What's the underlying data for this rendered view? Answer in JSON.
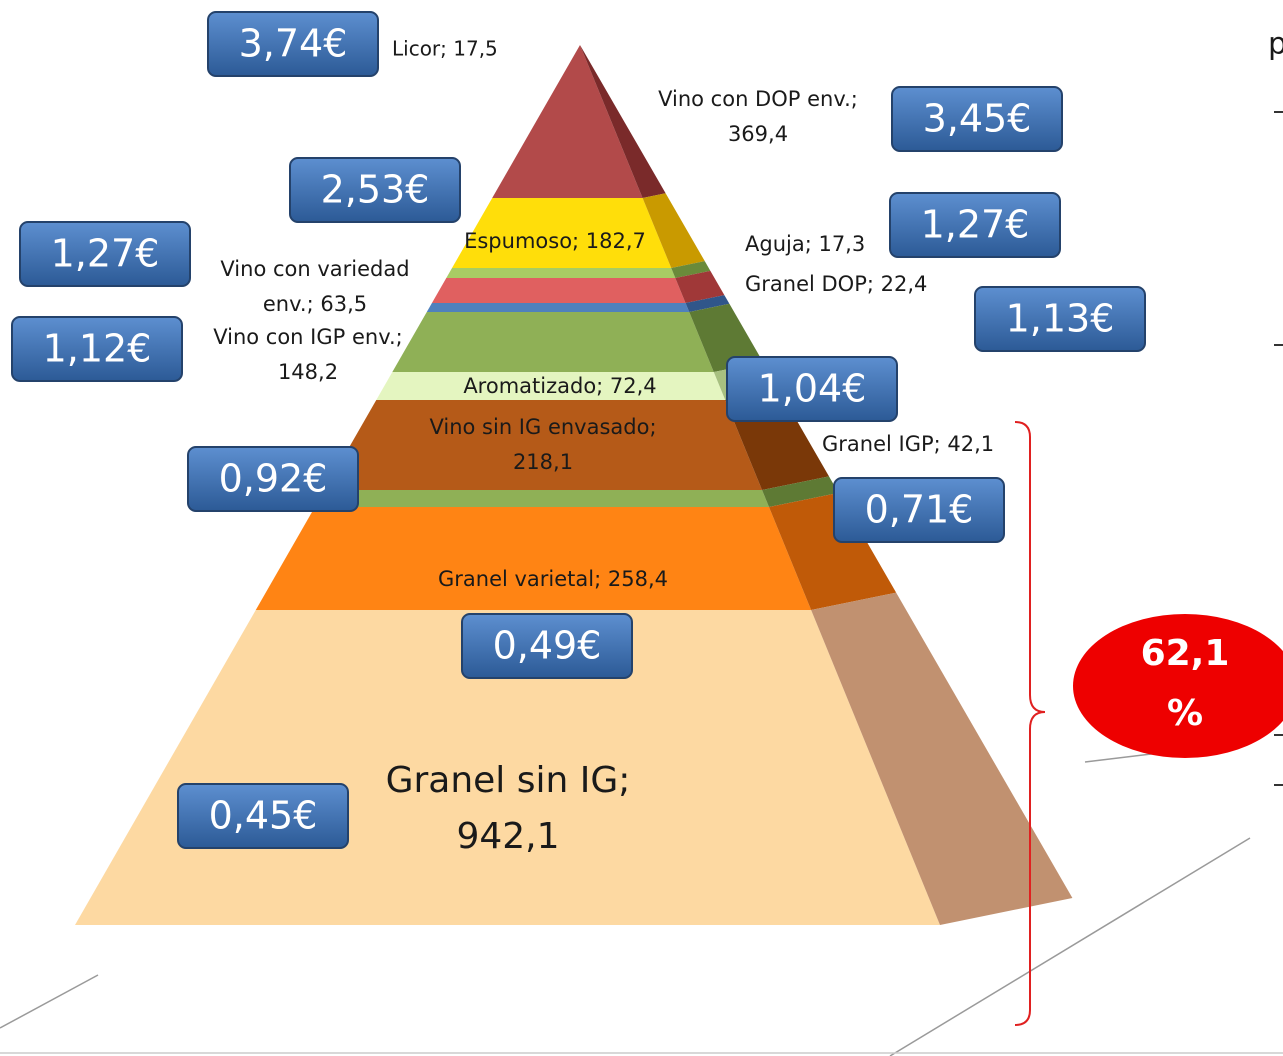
{
  "labels": [
    [
      "Licor; 17,5"
    ],
    [
      "Vino con DOP env.;",
      "369,4"
    ],
    [
      "Espumoso; 182,7"
    ],
    [
      "Aguja; 17,3"
    ],
    [
      "Granel DOP; 22,4"
    ],
    [
      "Vino con variedad",
      "env.; 63,5"
    ],
    [
      "Vino con IGP env.;",
      "148,2"
    ],
    [
      "Aromatizado; 72,4"
    ],
    [
      "Vino sin IG envasado;",
      "218,1"
    ],
    [
      "Granel IGP; 42,1"
    ],
    [
      "Granel varietal; 258,4"
    ],
    [
      "Granel sin IG;",
      "942,1"
    ]
  ],
  "prices": [
    "3,74€",
    "3,45€",
    "2,53€",
    "1,27€",
    "1,27€",
    "1,13€",
    "1,12€",
    "1,04€",
    "0,92€",
    "0,71€",
    "0,49€",
    "0,45€"
  ],
  "badge": [
    "62,1",
    "%"
  ],
  "side_text": "p"
}
